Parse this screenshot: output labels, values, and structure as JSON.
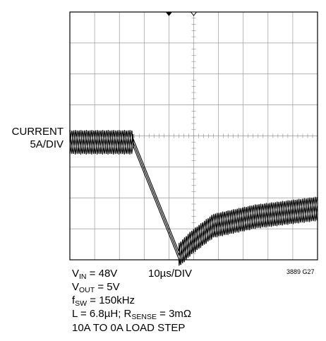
{
  "chart_data": {
    "type": "line",
    "title": "",
    "y_label": {
      "line1": "CURRENT",
      "line2": "5A/DIV"
    },
    "x_label": "10µs/DIV",
    "grid": {
      "x_divisions": 10,
      "y_divisions": 8,
      "on": true
    },
    "figure_id": "3889 G27",
    "x_unit": "µs",
    "y_unit": "A",
    "series": [
      {
        "ripple_pp_divisions": 0.8,
        "ripple_period_div": 0.22,
        "trace_count": 3,
        "points_div": [
          [
            0.0,
            3.8
          ],
          [
            2.55,
            3.8
          ],
          [
            4.4,
            0.15
          ],
          [
            4.9,
            0.55
          ],
          [
            5.8,
            1.1
          ],
          [
            7.5,
            1.4
          ],
          [
            10.0,
            1.65
          ]
        ]
      }
    ]
  },
  "conditions": {
    "vin": {
      "sym": "V",
      "sub": "IN",
      "val": " = 48V"
    },
    "vout": {
      "sym": "V",
      "sub": "OUT",
      "val": " = 5V"
    },
    "fsw": {
      "sym": "f",
      "sub": "SW",
      "val": " = 150kHz"
    },
    "l_rsense": {
      "pre": "L = 6.8µH; R",
      "sub": "SENSE",
      "val": " = 3mΩ"
    },
    "load_step": "10A TO 0A LOAD STEP"
  },
  "colors": {
    "trace": "#000000",
    "grid": "#999999",
    "frame": "#000000"
  }
}
